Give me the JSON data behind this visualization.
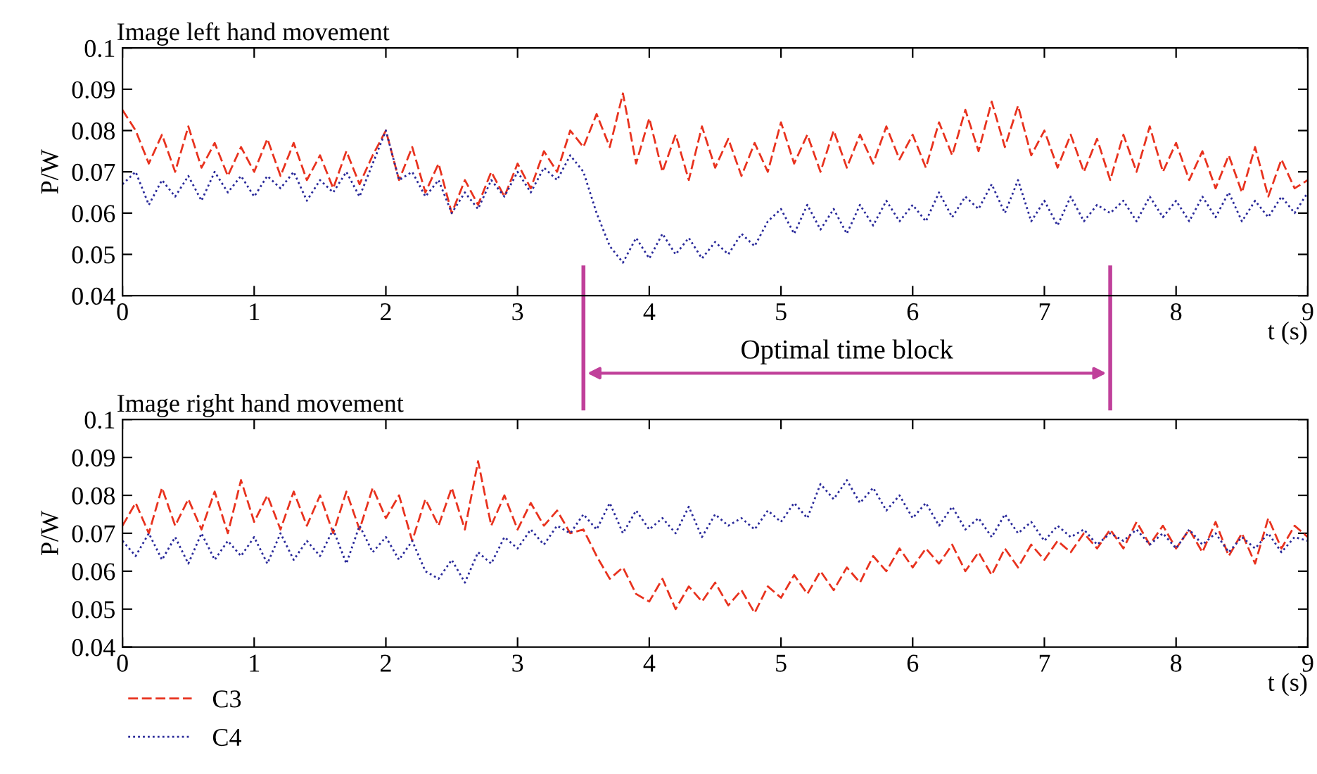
{
  "chart_data": [
    {
      "type": "line",
      "title": "Image left hand movement",
      "ylabel": "P/W",
      "xlabel": "t (s)",
      "x": [
        0.0,
        0.1,
        0.2,
        0.3,
        0.4,
        0.5,
        0.6,
        0.7,
        0.8,
        0.9,
        1.0,
        1.1,
        1.2,
        1.3,
        1.4,
        1.5,
        1.6,
        1.7,
        1.8,
        1.9,
        2.0,
        2.1,
        2.2,
        2.3,
        2.4,
        2.5,
        2.6,
        2.7,
        2.8,
        2.9,
        3.0,
        3.1,
        3.2,
        3.3,
        3.4,
        3.5,
        3.6,
        3.7,
        3.8,
        3.9,
        4.0,
        4.1,
        4.2,
        4.3,
        4.4,
        4.5,
        4.6,
        4.7,
        4.8,
        4.9,
        5.0,
        5.1,
        5.2,
        5.3,
        5.4,
        5.5,
        5.6,
        5.7,
        5.8,
        5.9,
        6.0,
        6.1,
        6.2,
        6.3,
        6.4,
        6.5,
        6.6,
        6.7,
        6.8,
        6.9,
        7.0,
        7.1,
        7.2,
        7.3,
        7.4,
        7.5,
        7.6,
        7.7,
        7.8,
        7.9,
        8.0,
        8.1,
        8.2,
        8.3,
        8.4,
        8.5,
        8.6,
        8.7,
        8.8,
        8.9,
        9.0
      ],
      "series": [
        {
          "name": "C3",
          "color": "#e8321e",
          "line_style": "dashed",
          "values": [
            0.085,
            0.08,
            0.072,
            0.079,
            0.07,
            0.081,
            0.071,
            0.077,
            0.069,
            0.076,
            0.07,
            0.078,
            0.069,
            0.077,
            0.068,
            0.074,
            0.066,
            0.075,
            0.067,
            0.074,
            0.08,
            0.068,
            0.076,
            0.065,
            0.072,
            0.06,
            0.068,
            0.062,
            0.07,
            0.064,
            0.072,
            0.066,
            0.075,
            0.07,
            0.08,
            0.076,
            0.084,
            0.076,
            0.089,
            0.072,
            0.083,
            0.07,
            0.079,
            0.068,
            0.081,
            0.071,
            0.078,
            0.069,
            0.077,
            0.07,
            0.082,
            0.072,
            0.079,
            0.07,
            0.08,
            0.071,
            0.079,
            0.072,
            0.081,
            0.073,
            0.079,
            0.071,
            0.082,
            0.074,
            0.085,
            0.075,
            0.087,
            0.076,
            0.086,
            0.074,
            0.08,
            0.071,
            0.079,
            0.07,
            0.078,
            0.068,
            0.079,
            0.07,
            0.081,
            0.07,
            0.077,
            0.068,
            0.075,
            0.066,
            0.074,
            0.065,
            0.076,
            0.064,
            0.073,
            0.066,
            0.068
          ]
        },
        {
          "name": "C4",
          "color": "#2a2a9a",
          "line_style": "dotted",
          "values": [
            0.067,
            0.07,
            0.062,
            0.068,
            0.064,
            0.069,
            0.063,
            0.07,
            0.065,
            0.069,
            0.064,
            0.069,
            0.066,
            0.07,
            0.063,
            0.068,
            0.065,
            0.07,
            0.064,
            0.072,
            0.08,
            0.068,
            0.07,
            0.064,
            0.068,
            0.06,
            0.065,
            0.061,
            0.068,
            0.064,
            0.07,
            0.065,
            0.071,
            0.068,
            0.074,
            0.07,
            0.06,
            0.052,
            0.048,
            0.054,
            0.049,
            0.055,
            0.05,
            0.054,
            0.049,
            0.053,
            0.05,
            0.055,
            0.052,
            0.058,
            0.061,
            0.055,
            0.062,
            0.056,
            0.061,
            0.055,
            0.062,
            0.057,
            0.063,
            0.058,
            0.062,
            0.058,
            0.065,
            0.059,
            0.064,
            0.061,
            0.067,
            0.06,
            0.068,
            0.058,
            0.063,
            0.057,
            0.064,
            0.058,
            0.062,
            0.06,
            0.063,
            0.058,
            0.064,
            0.059,
            0.063,
            0.058,
            0.064,
            0.059,
            0.065,
            0.058,
            0.063,
            0.059,
            0.064,
            0.06,
            0.065
          ]
        }
      ],
      "xlim": [
        0,
        9
      ],
      "xticks": [
        0,
        1,
        2,
        3,
        4,
        5,
        6,
        7,
        8,
        9
      ],
      "ylim": [
        0.04,
        0.1
      ],
      "yticks": [
        0.04,
        0.05,
        0.06,
        0.07,
        0.08,
        0.09,
        0.1
      ],
      "ref_lines": [
        {
          "axis": "x",
          "value": 3.5,
          "color": "#c0409a"
        },
        {
          "axis": "x",
          "value": 7.5,
          "color": "#c0409a"
        }
      ],
      "annotations": [
        "Optimal time block"
      ],
      "grid": false,
      "legend": "bottom left"
    },
    {
      "type": "line",
      "title": "Image right hand movement",
      "ylabel": "P/W",
      "xlabel": "t (s)",
      "x": [
        0.0,
        0.1,
        0.2,
        0.3,
        0.4,
        0.5,
        0.6,
        0.7,
        0.8,
        0.9,
        1.0,
        1.1,
        1.2,
        1.3,
        1.4,
        1.5,
        1.6,
        1.7,
        1.8,
        1.9,
        2.0,
        2.1,
        2.2,
        2.3,
        2.4,
        2.5,
        2.6,
        2.7,
        2.8,
        2.9,
        3.0,
        3.1,
        3.2,
        3.3,
        3.4,
        3.5,
        3.6,
        3.7,
        3.8,
        3.9,
        4.0,
        4.1,
        4.2,
        4.3,
        4.4,
        4.5,
        4.6,
        4.7,
        4.8,
        4.9,
        5.0,
        5.1,
        5.2,
        5.3,
        5.4,
        5.5,
        5.6,
        5.7,
        5.8,
        5.9,
        6.0,
        6.1,
        6.2,
        6.3,
        6.4,
        6.5,
        6.6,
        6.7,
        6.8,
        6.9,
        7.0,
        7.1,
        7.2,
        7.3,
        7.4,
        7.5,
        7.6,
        7.7,
        7.8,
        7.9,
        8.0,
        8.1,
        8.2,
        8.3,
        8.4,
        8.5,
        8.6,
        8.7,
        8.8,
        8.9,
        9.0
      ],
      "series": [
        {
          "color": "#e8321e",
          "line_style": "dashed",
          "values": [
            0.072,
            0.078,
            0.07,
            0.082,
            0.072,
            0.079,
            0.071,
            0.081,
            0.07,
            0.084,
            0.073,
            0.08,
            0.071,
            0.081,
            0.072,
            0.08,
            0.07,
            0.081,
            0.071,
            0.082,
            0.074,
            0.08,
            0.068,
            0.079,
            0.072,
            0.082,
            0.071,
            0.089,
            0.072,
            0.08,
            0.071,
            0.078,
            0.072,
            0.076,
            0.07,
            0.071,
            0.064,
            0.058,
            0.061,
            0.054,
            0.052,
            0.058,
            0.05,
            0.056,
            0.052,
            0.057,
            0.051,
            0.055,
            0.049,
            0.056,
            0.053,
            0.059,
            0.054,
            0.06,
            0.055,
            0.061,
            0.057,
            0.064,
            0.06,
            0.066,
            0.061,
            0.066,
            0.062,
            0.067,
            0.06,
            0.065,
            0.059,
            0.066,
            0.061,
            0.067,
            0.063,
            0.068,
            0.065,
            0.07,
            0.066,
            0.071,
            0.066,
            0.073,
            0.067,
            0.072,
            0.066,
            0.071,
            0.065,
            0.073,
            0.064,
            0.07,
            0.062,
            0.074,
            0.066,
            0.072,
            0.069
          ]
        },
        {
          "color": "#2a2a9a",
          "line_style": "dotted",
          "values": [
            0.068,
            0.064,
            0.07,
            0.063,
            0.069,
            0.062,
            0.07,
            0.063,
            0.068,
            0.064,
            0.069,
            0.062,
            0.07,
            0.063,
            0.068,
            0.064,
            0.071,
            0.062,
            0.072,
            0.065,
            0.069,
            0.063,
            0.068,
            0.06,
            0.058,
            0.063,
            0.057,
            0.065,
            0.062,
            0.069,
            0.066,
            0.071,
            0.067,
            0.072,
            0.07,
            0.075,
            0.071,
            0.078,
            0.07,
            0.076,
            0.071,
            0.074,
            0.07,
            0.077,
            0.069,
            0.075,
            0.072,
            0.074,
            0.071,
            0.076,
            0.073,
            0.078,
            0.074,
            0.083,
            0.079,
            0.084,
            0.078,
            0.082,
            0.076,
            0.08,
            0.074,
            0.078,
            0.072,
            0.077,
            0.071,
            0.074,
            0.069,
            0.075,
            0.07,
            0.073,
            0.068,
            0.072,
            0.069,
            0.071,
            0.067,
            0.07,
            0.068,
            0.071,
            0.067,
            0.07,
            0.066,
            0.071,
            0.067,
            0.07,
            0.065,
            0.069,
            0.066,
            0.07,
            0.065,
            0.069,
            0.068
          ]
        }
      ],
      "xlim": [
        0,
        9
      ],
      "xticks": [
        0,
        1,
        2,
        3,
        4,
        5,
        6,
        7,
        8,
        9
      ],
      "ylim": [
        0.04,
        0.1
      ],
      "yticks": [
        0.04,
        0.05,
        0.06,
        0.07,
        0.08,
        0.09,
        0.1
      ],
      "grid": false
    }
  ]
}
